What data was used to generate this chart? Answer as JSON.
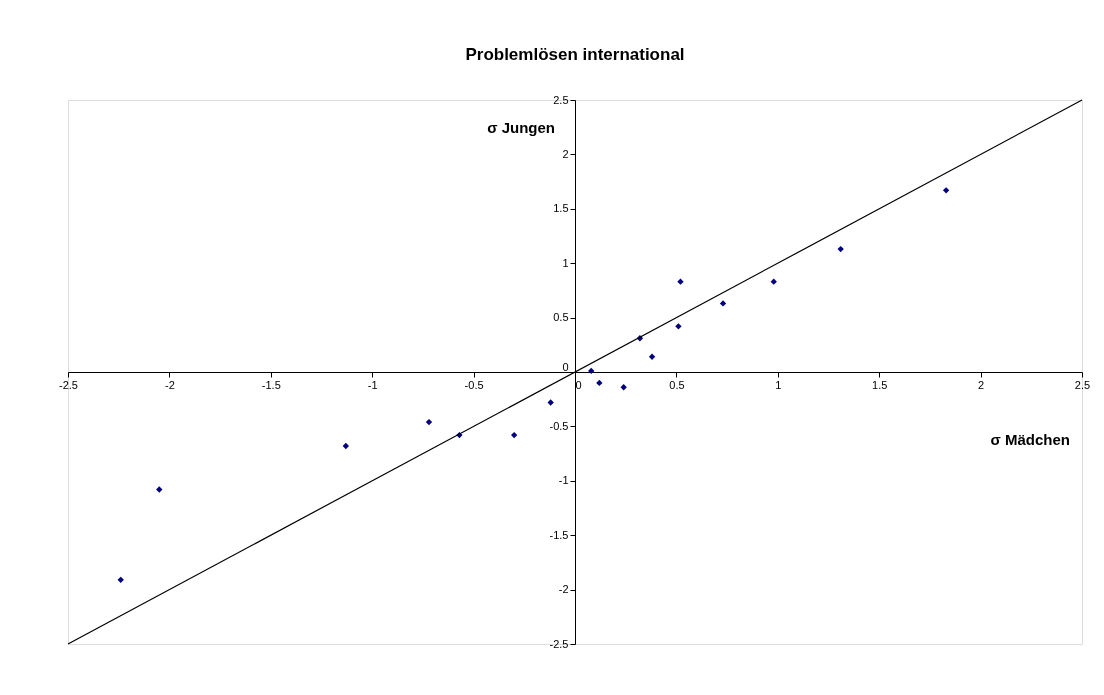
{
  "chart_data": {
    "type": "scatter",
    "title": "Problemlösen international",
    "xlabel": "σ Mädchen",
    "ylabel": "σ Jungen",
    "x": [
      -2.24,
      -2.05,
      -1.13,
      -0.72,
      -0.57,
      -0.3,
      -0.12,
      0.08,
      0.12,
      0.24,
      0.32,
      0.38,
      0.51,
      0.52,
      0.73,
      0.98,
      1.31,
      1.83
    ],
    "series": [
      {
        "color": "#000080",
        "marker": "diamond",
        "values": [
          -1.91,
          -1.08,
          -0.68,
          -0.46,
          -0.58,
          -0.58,
          -0.28,
          0.01,
          -0.1,
          -0.14,
          0.31,
          0.14,
          0.42,
          0.83,
          0.63,
          0.83,
          1.13,
          1.67
        ]
      },
      {
        "type": "line",
        "color": "#000000",
        "x": [
          -2.5,
          2.5
        ],
        "values": [
          -2.5,
          2.5
        ]
      }
    ],
    "xlim": [
      -2.5,
      2.5
    ],
    "ylim": [
      -2.5,
      2.5
    ],
    "xticks": [
      -2.5,
      -2,
      -1.5,
      -1,
      -0.5,
      0,
      0.5,
      1,
      1.5,
      2,
      2.5
    ],
    "yticks": [
      -2.5,
      -2,
      -1.5,
      -1,
      -0.5,
      0,
      0.5,
      1,
      1.5,
      2,
      2.5
    ],
    "grid": false
  }
}
